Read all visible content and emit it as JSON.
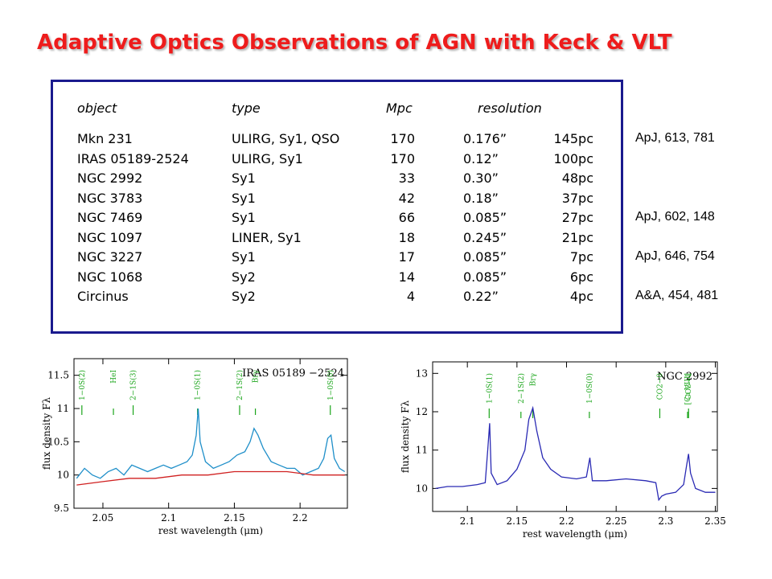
{
  "title": "Adaptive Optics Observations of AGN with Keck & VLT",
  "table": {
    "headers": {
      "object": "object",
      "type": "type",
      "mpc": "Mpc",
      "resolution": "resolution"
    },
    "rows": [
      {
        "object": "Mkn 231",
        "type": "ULIRG, Sy1, QSO",
        "mpc": "170",
        "res_arcsec": "0.176”",
        "res_pc": "145pc"
      },
      {
        "object": "IRAS 05189-2524",
        "type": "ULIRG, Sy1",
        "mpc": "170",
        "res_arcsec": "0.12”",
        "res_pc": "100pc"
      },
      {
        "object": "NGC 2992",
        "type": "Sy1",
        "mpc": "33",
        "res_arcsec": "0.30”",
        "res_pc": "48pc"
      },
      {
        "object": "NGC 3783",
        "type": "Sy1",
        "mpc": "42",
        "res_arcsec": "0.18”",
        "res_pc": "37pc"
      },
      {
        "object": "NGC 7469",
        "type": "Sy1",
        "mpc": "66",
        "res_arcsec": "0.085”",
        "res_pc": "27pc"
      },
      {
        "object": "NGC 1097",
        "type": "LINER, Sy1",
        "mpc": "18",
        "res_arcsec": "0.245”",
        "res_pc": "21pc"
      },
      {
        "object": "NGC 3227",
        "type": "Sy1",
        "mpc": "17",
        "res_arcsec": "0.085”",
        "res_pc": "7pc"
      },
      {
        "object": "NGC 1068",
        "type": "Sy2",
        "mpc": "14",
        "res_arcsec": "0.085”",
        "res_pc": "6pc"
      },
      {
        "object": "Circinus",
        "type": "Sy2",
        "mpc": "4",
        "res_arcsec": "0.22”",
        "res_pc": "4pc"
      }
    ]
  },
  "references": [
    {
      "row": 0,
      "text": "ApJ, 613, 781"
    },
    {
      "row": 4,
      "text": "ApJ, 602, 148"
    },
    {
      "row": 6,
      "text": "ApJ, 646, 754"
    },
    {
      "row": 8,
      "text": "A&A, 454, 481"
    }
  ],
  "chart_data": [
    {
      "type": "line",
      "label": "IRAS 05189 −2524",
      "xlabel": "rest wavelength (μm)",
      "ylabel": "flux density Fλ",
      "xlim": [
        2.028,
        2.236
      ],
      "ylim": [
        9.5,
        11.75
      ],
      "xticks": [
        2.05,
        2.1,
        2.15,
        2.2
      ],
      "yticks": [
        9.5,
        10,
        10.5,
        11,
        11.5
      ],
      "line_labels": [
        {
          "text": "1−0S(2)",
          "x": 2.034
        },
        {
          "text": "HeI",
          "x": 2.058
        },
        {
          "text": "2−1S(3)",
          "x": 2.073
        },
        {
          "text": "1−0S(1)",
          "x": 2.122
        },
        {
          "text": "2−1S(2)",
          "x": 2.154
        },
        {
          "text": "Brγ",
          "x": 2.166
        },
        {
          "text": "1−0S(0)",
          "x": 2.223
        }
      ],
      "series": [
        {
          "color": "#1f8fc9",
          "x": [
            2.03,
            2.036,
            2.042,
            2.048,
            2.054,
            2.06,
            2.066,
            2.072,
            2.078,
            2.084,
            2.09,
            2.096,
            2.102,
            2.108,
            2.114,
            2.118,
            2.121,
            2.1225,
            2.124,
            2.128,
            2.134,
            2.14,
            2.146,
            2.152,
            2.158,
            2.162,
            2.165,
            2.168,
            2.172,
            2.178,
            2.184,
            2.19,
            2.196,
            2.202,
            2.208,
            2.214,
            2.218,
            2.221,
            2.2235,
            2.226,
            2.23,
            2.234
          ],
          "y": [
            9.95,
            10.1,
            10.0,
            9.95,
            10.05,
            10.1,
            10.0,
            10.15,
            10.1,
            10.05,
            10.1,
            10.15,
            10.1,
            10.15,
            10.2,
            10.3,
            10.6,
            11.0,
            10.5,
            10.2,
            10.1,
            10.15,
            10.2,
            10.3,
            10.35,
            10.5,
            10.7,
            10.6,
            10.4,
            10.2,
            10.15,
            10.1,
            10.1,
            10.0,
            10.05,
            10.1,
            10.25,
            10.55,
            10.6,
            10.25,
            10.1,
            10.05
          ]
        },
        {
          "color": "#d02020",
          "x": [
            2.03,
            2.05,
            2.07,
            2.09,
            2.11,
            2.13,
            2.15,
            2.17,
            2.19,
            2.21,
            2.234
          ],
          "y": [
            9.85,
            9.9,
            9.95,
            9.95,
            10.0,
            10.0,
            10.05,
            10.05,
            10.05,
            10.0,
            10.0
          ]
        }
      ]
    },
    {
      "type": "line",
      "label": "NGC 2992",
      "xlabel": "rest wavelength (μm)",
      "ylabel": "flux density Fλ",
      "xlim": [
        2.065,
        2.352
      ],
      "ylim": [
        9.4,
        13.3
      ],
      "xticks": [
        2.1,
        2.15,
        2.2,
        2.25,
        2.3,
        2.35
      ],
      "yticks": [
        10,
        11,
        12,
        13
      ],
      "line_labels": [
        {
          "text": "1−0S(1)",
          "x": 2.122
        },
        {
          "text": "2−1S(2)",
          "x": 2.154
        },
        {
          "text": "Brγ",
          "x": 2.166
        },
        {
          "text": "1−0S(0)",
          "x": 2.223
        },
        {
          "text": "CO2−0",
          "x": 2.294
        },
        {
          "text": "[Ca VIII]",
          "x": 2.322
        },
        {
          "text": "CO3−1",
          "x": 2.323
        }
      ],
      "series": [
        {
          "color": "#2a2ab4",
          "x": [
            2.068,
            2.08,
            2.095,
            2.11,
            2.118,
            2.1205,
            2.1225,
            2.124,
            2.13,
            2.14,
            2.15,
            2.158,
            2.162,
            2.166,
            2.17,
            2.176,
            2.184,
            2.195,
            2.21,
            2.22,
            2.2235,
            2.226,
            2.24,
            2.26,
            2.28,
            2.29,
            2.293,
            2.296,
            2.3,
            2.31,
            2.318,
            2.321,
            2.323,
            2.325,
            2.33,
            2.34,
            2.35
          ],
          "y": [
            10.0,
            10.05,
            10.05,
            10.1,
            10.15,
            11.0,
            11.7,
            10.4,
            10.1,
            10.2,
            10.5,
            11.0,
            11.8,
            12.1,
            11.5,
            10.8,
            10.5,
            10.3,
            10.25,
            10.3,
            10.8,
            10.2,
            10.2,
            10.25,
            10.2,
            10.15,
            9.7,
            9.8,
            9.85,
            9.9,
            10.1,
            10.6,
            10.9,
            10.4,
            10.0,
            9.9,
            9.9
          ]
        }
      ]
    }
  ]
}
